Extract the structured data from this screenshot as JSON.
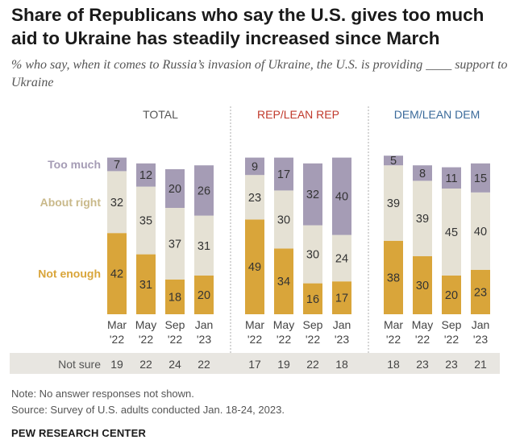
{
  "title": "Share of Republicans who say the U.S. gives too much aid to Ukraine has steadily increased since March",
  "subtitle": "% who say, when it comes to Russia’s invasion of Ukraine, the U.S. is providing ____ support to Ukraine",
  "note": "Note: No answer responses not shown.",
  "source": "Source: Survey of U.S. adults conducted Jan. 18-24, 2023.",
  "brand": "PEW RESEARCH CENTER",
  "colors": {
    "too_much": "#a59cb5",
    "about_right": "#e5e1d4",
    "not_enough": "#d9a53a",
    "total_header": "#555555",
    "rep_header": "#c0392b",
    "dem_header": "#3a6a9a",
    "not_sure_band": "#e8e6e1",
    "divider": "#c8c8c8"
  },
  "chart_data": {
    "type": "bar",
    "stacked": true,
    "scale_max": 100,
    "categories_top": [
      "Mar",
      "May",
      "Sep",
      "Jan"
    ],
    "categories_bottom": [
      "'22",
      "'22",
      "'22",
      "'23"
    ],
    "series_labels": [
      "Too much",
      "About right",
      "Not enough"
    ],
    "not_sure_label": "Not sure",
    "groups": [
      {
        "name": "TOTAL",
        "header_color_key": "total_header",
        "too_much": [
          7,
          12,
          20,
          26
        ],
        "about_right": [
          32,
          35,
          37,
          31
        ],
        "not_enough": [
          42,
          31,
          18,
          20
        ],
        "not_sure": [
          19,
          22,
          24,
          22
        ]
      },
      {
        "name": "REP/LEAN REP",
        "header_color_key": "rep_header",
        "too_much": [
          9,
          17,
          32,
          40
        ],
        "about_right": [
          23,
          30,
          30,
          24
        ],
        "not_enough": [
          49,
          34,
          16,
          17
        ],
        "not_sure": [
          17,
          19,
          22,
          18
        ]
      },
      {
        "name": "DEM/LEAN DEM",
        "header_color_key": "dem_header",
        "too_much": [
          5,
          8,
          11,
          15
        ],
        "about_right": [
          39,
          39,
          45,
          40
        ],
        "not_enough": [
          38,
          30,
          20,
          23
        ],
        "not_sure": [
          18,
          23,
          23,
          21
        ]
      }
    ]
  }
}
